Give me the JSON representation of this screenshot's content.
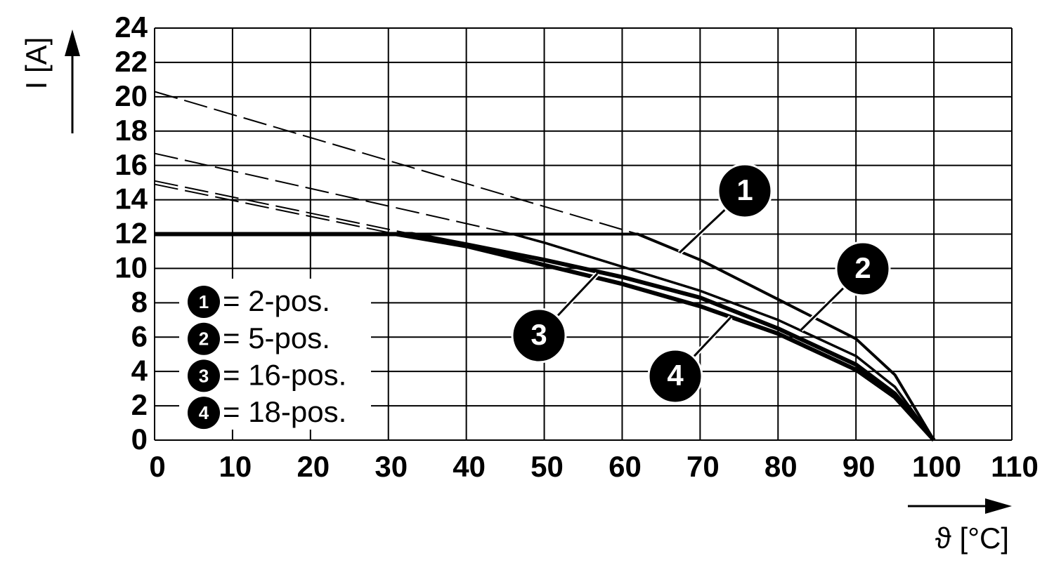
{
  "chart_data": {
    "type": "line",
    "y_label": "I [A]",
    "x_label": "ϑ [°C]",
    "xlim": [
      0,
      110
    ],
    "xticks": [
      0,
      10,
      20,
      30,
      40,
      50,
      60,
      70,
      80,
      90,
      100,
      110
    ],
    "ylim": [
      0,
      24
    ],
    "yticks": [
      0,
      2,
      4,
      6,
      8,
      10,
      12,
      14,
      16,
      18,
      20,
      22,
      24
    ],
    "grid": true,
    "color": "#000000",
    "series": [
      {
        "name": "1",
        "label": "= 2-pos.",
        "solid": {
          "x": [
            0,
            62,
            70,
            80,
            90,
            95,
            100
          ],
          "values": [
            12,
            12,
            10.5,
            8.2,
            5.9,
            3.8,
            0
          ]
        },
        "dashed": {
          "x": [
            0,
            62
          ],
          "values": [
            20.3,
            12
          ]
        }
      },
      {
        "name": "2",
        "label": "= 5-pos.",
        "solid": {
          "x": [
            0,
            46,
            50,
            60,
            70,
            80,
            90,
            95,
            100
          ],
          "values": [
            12,
            12,
            11.5,
            10.1,
            8.7,
            7,
            4.9,
            3.1,
            0
          ]
        },
        "dashed": {
          "x": [
            0,
            46
          ],
          "values": [
            16.7,
            12
          ]
        }
      },
      {
        "name": "3",
        "label": "= 16-pos.",
        "solid": {
          "x": [
            0,
            33,
            40,
            50,
            60,
            70,
            80,
            90,
            95,
            100
          ],
          "values": [
            12,
            12,
            11.4,
            10.5,
            9.5,
            8.3,
            6.5,
            4.4,
            2.7,
            0
          ]
        },
        "dashed": {
          "x": [
            0,
            33
          ],
          "values": [
            15.1,
            12
          ]
        }
      },
      {
        "name": "4",
        "label": "= 18-pos.",
        "solid": {
          "x": [
            0,
            31,
            40,
            50,
            60,
            70,
            80,
            90,
            95,
            100
          ],
          "values": [
            12,
            12,
            11.3,
            10.2,
            9.1,
            7.8,
            6.2,
            4.1,
            2.5,
            0
          ]
        },
        "dashed": {
          "x": [
            0,
            31
          ],
          "values": [
            14.9,
            12
          ]
        }
      }
    ]
  }
}
